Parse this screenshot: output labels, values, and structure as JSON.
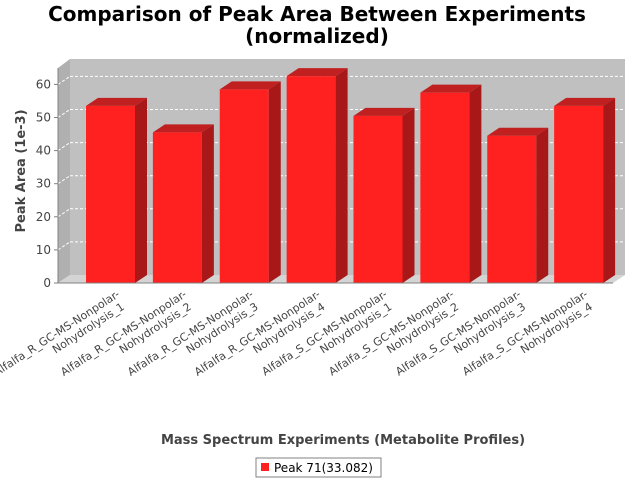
{
  "chart_data": {
    "type": "bar",
    "title": "Comparison of Peak Area Between Experiments",
    "subtitle": "(normalized)",
    "xlabel": "Mass Spectrum Experiments (Metabolite Profiles)",
    "ylabel": "Peak Area (1e-3)",
    "ylim": [
      0,
      65
    ],
    "yticks": [
      "0",
      "10",
      "20",
      "30",
      "40",
      "50",
      "60"
    ],
    "grid": true,
    "legend_position": "bottom",
    "categories": [
      [
        "Alfalfa_R_GC-MS-Nonpolar-",
        "Nohydrolysis_1"
      ],
      [
        "Alfalfa_R_GC-MS-Nonpolar-",
        "Nohydrolysis_2"
      ],
      [
        "Alfalfa_R_GC-MS-Nonpolar-",
        "Nohydrolysis_3"
      ],
      [
        "Alfalfa_R_GC-MS-Nonpolar-",
        "Nohydrolysis_4"
      ],
      [
        "Alfalfa_S_GC-MS-Nonpolar-",
        "Nohydrolysis_1"
      ],
      [
        "Alfalfa_S_GC-MS-Nonpolar-",
        "Nohydrolysis_2"
      ],
      [
        "Alfalfa_S_GC-MS-Nonpolar-",
        "Nohydrolysis_3"
      ],
      [
        "Alfalfa_S_GC-MS-Nonpolar-",
        "Nohydrolysis_4"
      ]
    ],
    "series": [
      {
        "name": "Peak 71(33.082)",
        "color": "#ff2020",
        "values": [
          53.5,
          45.5,
          58.5,
          62.5,
          50.5,
          57.5,
          44.5,
          53.5
        ]
      }
    ]
  }
}
